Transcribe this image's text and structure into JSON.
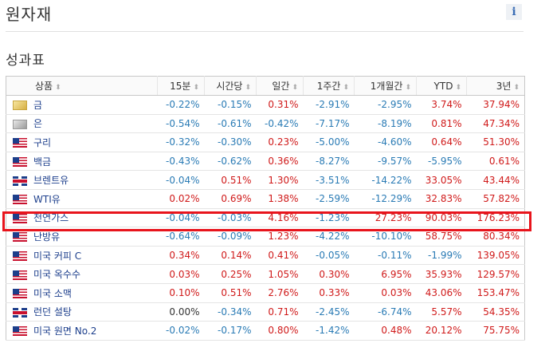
{
  "header": {
    "title": "원자재",
    "info_label": "i"
  },
  "section": {
    "title": "성과표"
  },
  "table": {
    "columns": [
      "상품",
      "15분",
      "시간당",
      "일간",
      "1주간",
      "1개월간",
      "YTD",
      "3년"
    ],
    "sort_icon": "⬍",
    "rows": [
      {
        "flag": "gold",
        "name": "금",
        "values": [
          "-0.22%",
          "-0.15%",
          "0.31%",
          "-2.91%",
          "-2.95%",
          "3.74%",
          "37.94%"
        ]
      },
      {
        "flag": "silver",
        "name": "은",
        "values": [
          "-0.54%",
          "-0.61%",
          "-0.42%",
          "-7.17%",
          "-8.19%",
          "0.81%",
          "47.34%"
        ]
      },
      {
        "flag": "us",
        "name": "구리",
        "values": [
          "-0.32%",
          "-0.30%",
          "0.23%",
          "-5.00%",
          "-4.60%",
          "0.64%",
          "51.30%"
        ]
      },
      {
        "flag": "us",
        "name": "백금",
        "values": [
          "-0.43%",
          "-0.62%",
          "0.36%",
          "-8.27%",
          "-9.57%",
          "-5.95%",
          "0.61%"
        ]
      },
      {
        "flag": "uk",
        "name": "브렌트유",
        "values": [
          "-0.04%",
          "0.51%",
          "1.30%",
          "-3.51%",
          "-14.22%",
          "33.05%",
          "43.44%"
        ]
      },
      {
        "flag": "us",
        "name": "WTI유",
        "values": [
          "0.02%",
          "0.69%",
          "1.38%",
          "-2.59%",
          "-12.29%",
          "32.83%",
          "57.82%"
        ]
      },
      {
        "flag": "us",
        "name": "천연가스",
        "values": [
          "-0.04%",
          "-0.03%",
          "4.16%",
          "-1.23%",
          "27.23%",
          "90.03%",
          "176.23%"
        ]
      },
      {
        "flag": "us",
        "name": "난방유",
        "values": [
          "-0.64%",
          "-0.09%",
          "1.23%",
          "-4.22%",
          "-10.10%",
          "58.75%",
          "80.34%"
        ]
      },
      {
        "flag": "us",
        "name": "미국 커피 C",
        "values": [
          "0.34%",
          "0.14%",
          "0.41%",
          "-0.05%",
          "-0.11%",
          "-1.99%",
          "139.05%"
        ]
      },
      {
        "flag": "us",
        "name": "미국 옥수수",
        "values": [
          "0.03%",
          "0.25%",
          "1.05%",
          "0.30%",
          "6.95%",
          "35.93%",
          "129.57%"
        ]
      },
      {
        "flag": "us",
        "name": "미국 소맥",
        "values": [
          "0.10%",
          "0.51%",
          "2.76%",
          "0.33%",
          "0.03%",
          "43.06%",
          "153.47%"
        ]
      },
      {
        "flag": "uk",
        "name": "런던 설탕",
        "values": [
          "0.00%",
          "-0.34%",
          "0.71%",
          "-2.45%",
          "-6.74%",
          "5.57%",
          "54.35%"
        ]
      },
      {
        "flag": "us",
        "name": "미국 원면 No.2",
        "values": [
          "-0.02%",
          "-0.17%",
          "0.80%",
          "-1.42%",
          "0.48%",
          "20.12%",
          "75.75%"
        ]
      }
    ]
  },
  "colors": {
    "positive": "#d01a1a",
    "negative": "#2a7bb5",
    "highlight": "#e8141c"
  }
}
